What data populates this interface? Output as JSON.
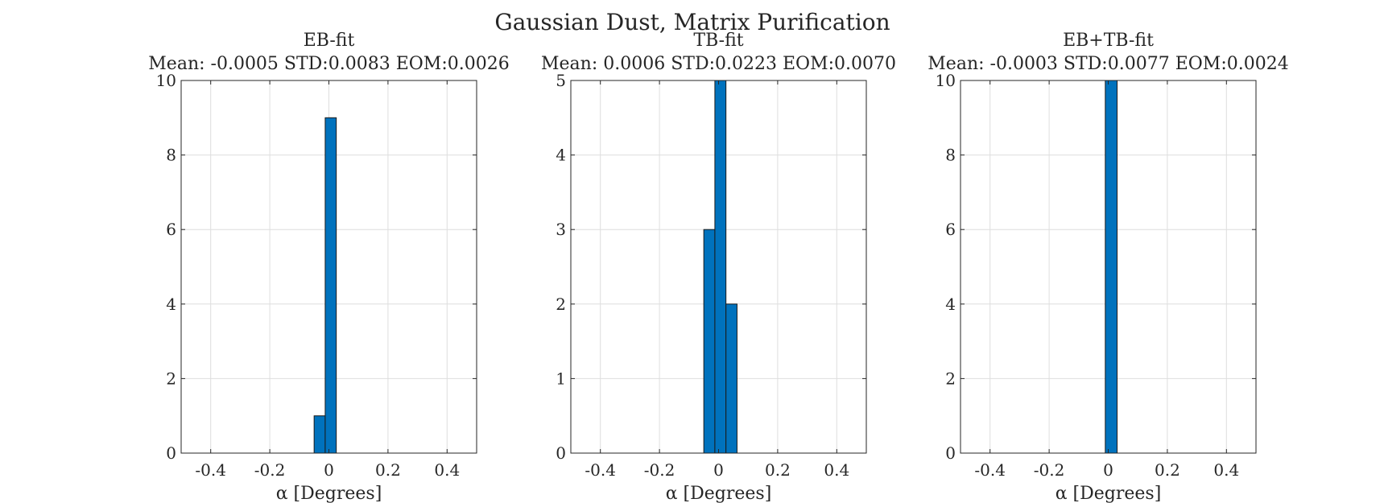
{
  "figure_title": "Gaussian Dust, Matrix Purification",
  "chart_data": [
    {
      "type": "bar",
      "title": "EB-fit",
      "subtitle": "Mean: -0.0005 STD:0.0083 EOM:0.0026",
      "xlabel": "α [Degrees]",
      "ylabel": "",
      "xlim": [
        -0.5,
        0.5
      ],
      "ylim": [
        0,
        10
      ],
      "xticks": [
        -0.4,
        -0.2,
        0,
        0.2,
        0.4
      ],
      "xtick_labels": [
        "-0.4",
        "-0.2",
        "0",
        "0.2",
        "0.4"
      ],
      "yticks": [
        0,
        2,
        4,
        6,
        8,
        10
      ],
      "ytick_labels": [
        "0",
        "2",
        "4",
        "6",
        "8",
        "10"
      ],
      "grid": true,
      "bars": [
        {
          "x0": -0.05,
          "x1": -0.0125,
          "value": 1
        },
        {
          "x0": -0.0125,
          "x1": 0.025,
          "value": 9
        }
      ]
    },
    {
      "type": "bar",
      "title": "TB-fit",
      "subtitle": "Mean: 0.0006 STD:0.0223 EOM:0.0070",
      "xlabel": "α [Degrees]",
      "ylabel": "",
      "xlim": [
        -0.5,
        0.5
      ],
      "ylim": [
        0,
        5
      ],
      "xticks": [
        -0.4,
        -0.2,
        0,
        0.2,
        0.4
      ],
      "xtick_labels": [
        "-0.4",
        "-0.2",
        "0",
        "0.2",
        "0.4"
      ],
      "yticks": [
        0,
        1,
        2,
        3,
        4,
        5
      ],
      "ytick_labels": [
        "0",
        "1",
        "2",
        "3",
        "4",
        "5"
      ],
      "grid": true,
      "bars": [
        {
          "x0": -0.05,
          "x1": -0.0125,
          "value": 3
        },
        {
          "x0": -0.0125,
          "x1": 0.025,
          "value": 5
        },
        {
          "x0": 0.025,
          "x1": 0.0625,
          "value": 2
        }
      ]
    },
    {
      "type": "bar",
      "title": "EB+TB-fit",
      "subtitle": "Mean: -0.0003 STD:0.0077 EOM:0.0024",
      "xlabel": "α [Degrees]",
      "ylabel": "",
      "xlim": [
        -0.5,
        0.5
      ],
      "ylim": [
        0,
        10
      ],
      "xticks": [
        -0.4,
        -0.2,
        0,
        0.2,
        0.4
      ],
      "xtick_labels": [
        "-0.4",
        "-0.2",
        "0",
        "0.2",
        "0.4"
      ],
      "yticks": [
        0,
        2,
        4,
        6,
        8,
        10
      ],
      "ytick_labels": [
        "0",
        "2",
        "4",
        "6",
        "8",
        "10"
      ],
      "grid": true,
      "bars": [
        {
          "x0": -0.01,
          "x1": 0.03,
          "value": 10
        }
      ]
    }
  ],
  "colors": {
    "bar_fill": "#0072BD",
    "bar_edge": "#1a1a1a",
    "grid": "#dedede",
    "axes": "#262626"
  }
}
